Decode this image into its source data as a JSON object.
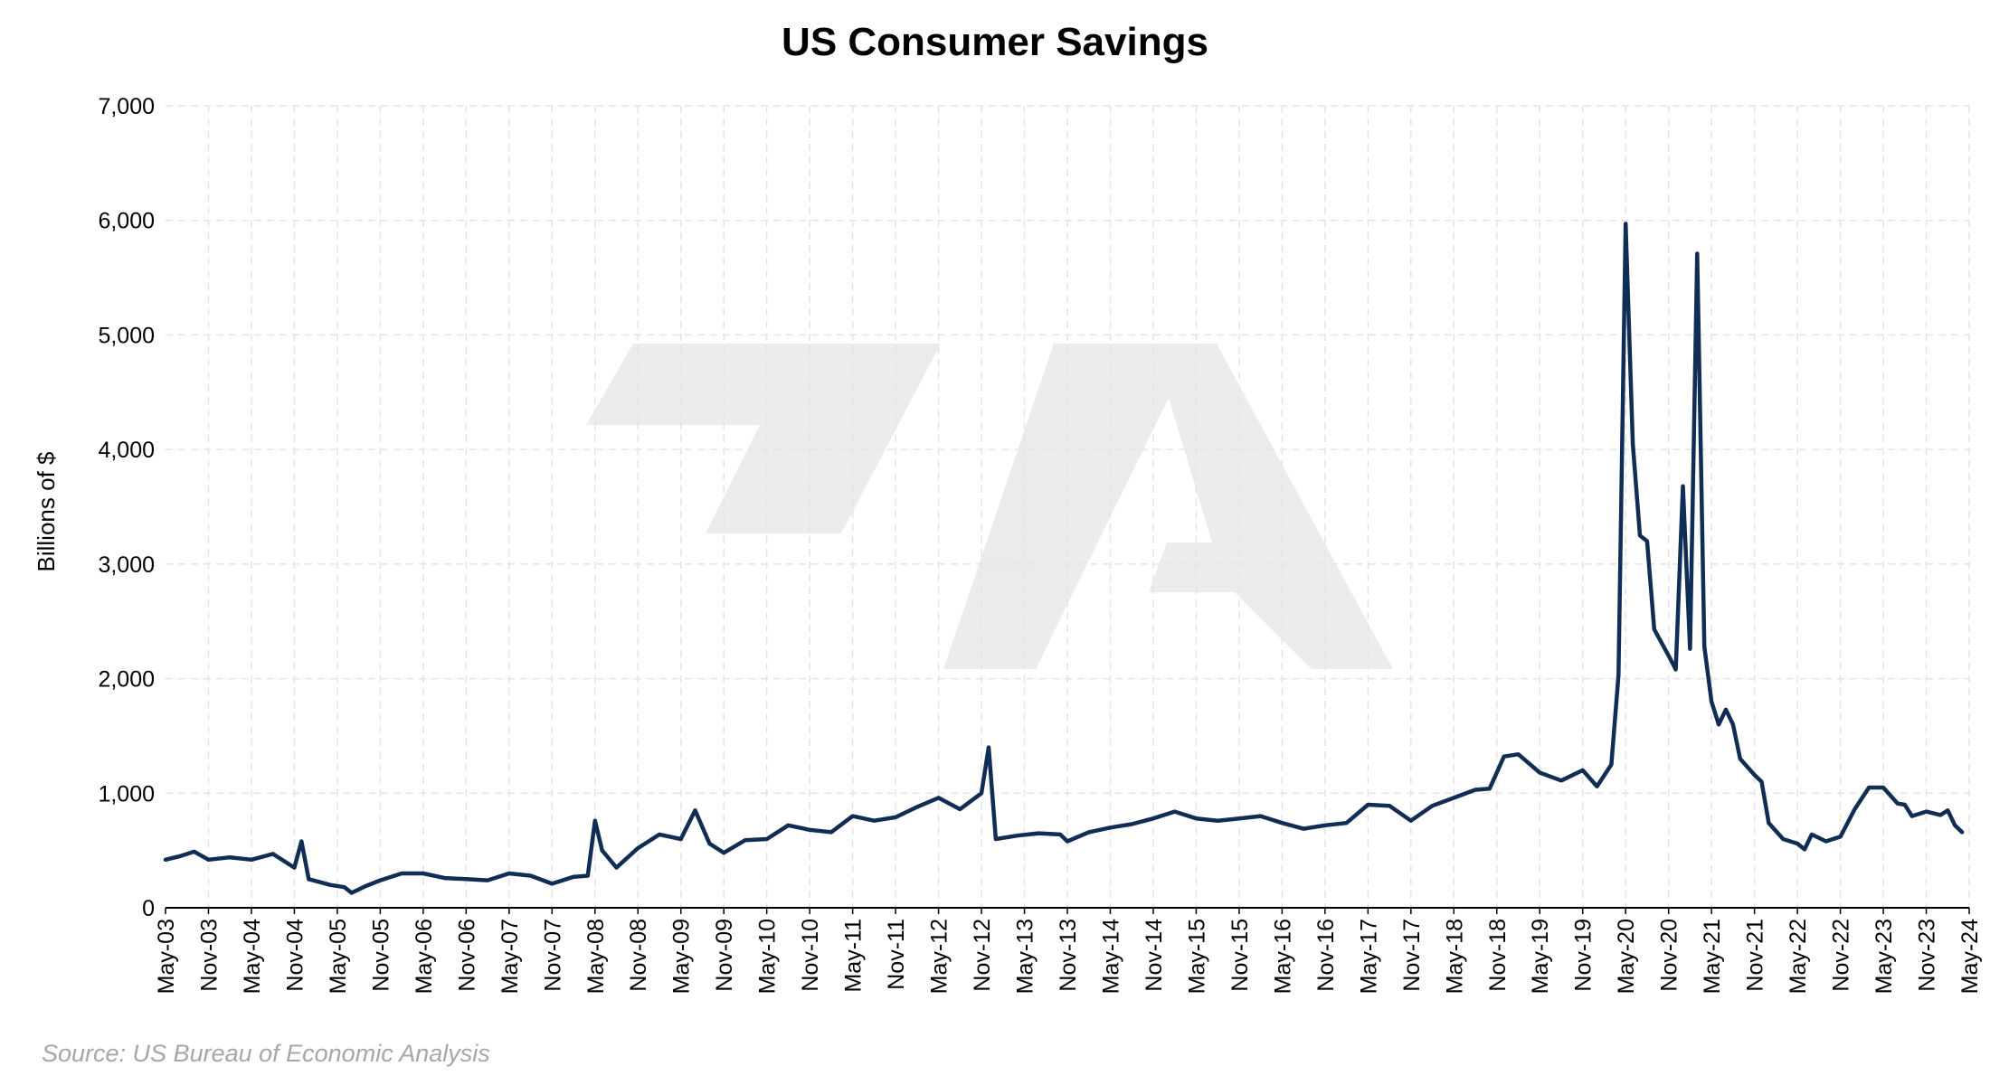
{
  "chart_data": {
    "type": "line",
    "title": "US Consumer Savings",
    "ylabel": "Billions of $",
    "xlabel": "",
    "source": "Source: US Bureau of Economic Analysis",
    "ylim": [
      0,
      7000
    ],
    "yticks": [
      0,
      1000,
      2000,
      3000,
      4000,
      5000,
      6000,
      7000
    ],
    "ytick_labels": [
      "0",
      "1,000",
      "2,000",
      "3,000",
      "4,000",
      "5,000",
      "6,000",
      "7,000"
    ],
    "x_start": "2003-05",
    "x_end": "2024-05",
    "xtick_labels": [
      "May-03",
      "Nov-03",
      "May-04",
      "Nov-04",
      "May-05",
      "Nov-05",
      "May-06",
      "Nov-06",
      "May-07",
      "Nov-07",
      "May-08",
      "Nov-08",
      "May-09",
      "Nov-09",
      "May-10",
      "Nov-10",
      "May-11",
      "Nov-11",
      "May-12",
      "Nov-12",
      "May-13",
      "Nov-13",
      "May-14",
      "Nov-14",
      "May-15",
      "Nov-15",
      "May-16",
      "Nov-16",
      "May-17",
      "Nov-17",
      "May-18",
      "Nov-18",
      "May-19",
      "Nov-19",
      "May-20",
      "Nov-20",
      "May-21",
      "Nov-21",
      "May-22",
      "Nov-22",
      "May-23",
      "Nov-23",
      "May-24"
    ],
    "grid": true,
    "line_color": "#0f2d55",
    "series": [
      {
        "points": [
          [
            "2003-05",
            420
          ],
          [
            "2003-07",
            450
          ],
          [
            "2003-09",
            490
          ],
          [
            "2003-11",
            420
          ],
          [
            "2004-02",
            440
          ],
          [
            "2004-05",
            420
          ],
          [
            "2004-08",
            470
          ],
          [
            "2004-11",
            350
          ],
          [
            "2004-12",
            580
          ],
          [
            "2005-01",
            250
          ],
          [
            "2005-04",
            200
          ],
          [
            "2005-06",
            180
          ],
          [
            "2005-07",
            130
          ],
          [
            "2005-09",
            190
          ],
          [
            "2005-11",
            240
          ],
          [
            "2006-02",
            300
          ],
          [
            "2006-05",
            300
          ],
          [
            "2006-08",
            260
          ],
          [
            "2006-11",
            250
          ],
          [
            "2007-02",
            240
          ],
          [
            "2007-05",
            300
          ],
          [
            "2007-08",
            280
          ],
          [
            "2007-11",
            210
          ],
          [
            "2008-02",
            270
          ],
          [
            "2008-04",
            280
          ],
          [
            "2008-05",
            760
          ],
          [
            "2008-06",
            500
          ],
          [
            "2008-08",
            350
          ],
          [
            "2008-11",
            520
          ],
          [
            "2009-02",
            640
          ],
          [
            "2009-05",
            600
          ],
          [
            "2009-07",
            850
          ],
          [
            "2009-09",
            560
          ],
          [
            "2009-11",
            480
          ],
          [
            "2010-02",
            590
          ],
          [
            "2010-05",
            600
          ],
          [
            "2010-08",
            720
          ],
          [
            "2010-11",
            680
          ],
          [
            "2011-02",
            660
          ],
          [
            "2011-05",
            800
          ],
          [
            "2011-08",
            760
          ],
          [
            "2011-11",
            790
          ],
          [
            "2012-02",
            880
          ],
          [
            "2012-05",
            960
          ],
          [
            "2012-08",
            860
          ],
          [
            "2012-11",
            1000
          ],
          [
            "2012-12",
            1400
          ],
          [
            "2013-01",
            600
          ],
          [
            "2013-04",
            630
          ],
          [
            "2013-07",
            650
          ],
          [
            "2013-10",
            640
          ],
          [
            "2013-11",
            580
          ],
          [
            "2014-02",
            660
          ],
          [
            "2014-05",
            700
          ],
          [
            "2014-08",
            730
          ],
          [
            "2014-11",
            780
          ],
          [
            "2015-02",
            840
          ],
          [
            "2015-05",
            780
          ],
          [
            "2015-08",
            760
          ],
          [
            "2015-11",
            780
          ],
          [
            "2016-02",
            800
          ],
          [
            "2016-05",
            740
          ],
          [
            "2016-08",
            690
          ],
          [
            "2016-11",
            720
          ],
          [
            "2017-02",
            740
          ],
          [
            "2017-05",
            900
          ],
          [
            "2017-08",
            890
          ],
          [
            "2017-11",
            760
          ],
          [
            "2018-02",
            890
          ],
          [
            "2018-05",
            960
          ],
          [
            "2018-08",
            1030
          ],
          [
            "2018-10",
            1040
          ],
          [
            "2018-12",
            1320
          ],
          [
            "2019-02",
            1340
          ],
          [
            "2019-05",
            1180
          ],
          [
            "2019-08",
            1110
          ],
          [
            "2019-11",
            1200
          ],
          [
            "2020-01",
            1060
          ],
          [
            "2020-03",
            1250
          ],
          [
            "2020-04",
            2030
          ],
          [
            "2020-05",
            5970
          ],
          [
            "2020-06",
            4050
          ],
          [
            "2020-07",
            3250
          ],
          [
            "2020-08",
            3200
          ],
          [
            "2020-09",
            2430
          ],
          [
            "2020-11",
            2200
          ],
          [
            "2020-12",
            2080
          ],
          [
            "2021-01",
            3680
          ],
          [
            "2021-02",
            2260
          ],
          [
            "2021-03",
            5710
          ],
          [
            "2021-04",
            2280
          ],
          [
            "2021-05",
            1800
          ],
          [
            "2021-06",
            1600
          ],
          [
            "2021-07",
            1730
          ],
          [
            "2021-08",
            1600
          ],
          [
            "2021-09",
            1300
          ],
          [
            "2021-11",
            1160
          ],
          [
            "2021-12",
            1100
          ],
          [
            "2022-01",
            740
          ],
          [
            "2022-03",
            600
          ],
          [
            "2022-05",
            560
          ],
          [
            "2022-06",
            510
          ],
          [
            "2022-07",
            640
          ],
          [
            "2022-09",
            580
          ],
          [
            "2022-11",
            620
          ],
          [
            "2023-01",
            860
          ],
          [
            "2023-03",
            1050
          ],
          [
            "2023-05",
            1050
          ],
          [
            "2023-07",
            910
          ],
          [
            "2023-08",
            900
          ],
          [
            "2023-09",
            800
          ],
          [
            "2023-11",
            840
          ],
          [
            "2024-01",
            810
          ],
          [
            "2024-02",
            850
          ],
          [
            "2024-03",
            720
          ],
          [
            "2024-04",
            660
          ]
        ]
      }
    ]
  }
}
